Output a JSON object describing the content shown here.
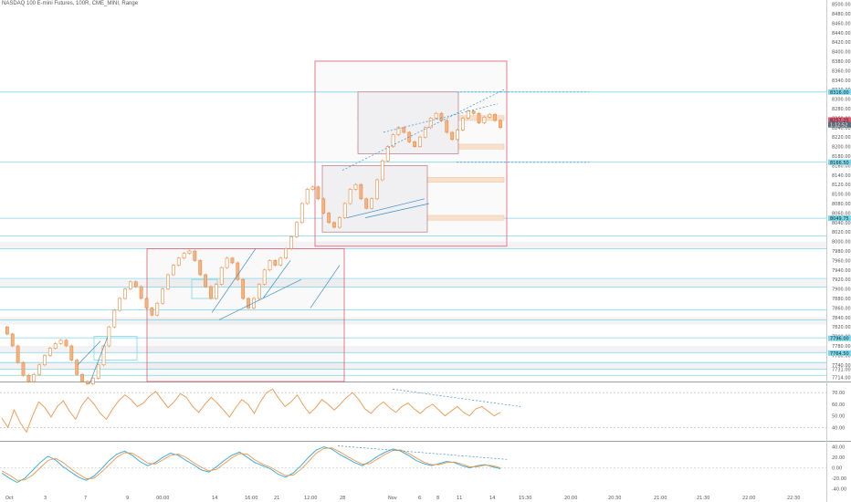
{
  "header": {
    "title": "NASDAQ 100 E-mini Futures, 100R, CME_MINI, Range"
  },
  "chart_data": {
    "type": "candlestick",
    "title": "NASDAQ 100 E-mini Futures, 100R, CME_MINI, Range",
    "price_axis": {
      "ticks": [
        "8500.00",
        "8480.00",
        "8460.00",
        "8440.00",
        "8420.00",
        "8400.00",
        "8380.00",
        "8360.00",
        "8340.00",
        "8320.00",
        "8300.00",
        "8280.00",
        "8260.00",
        "8240.00",
        "8220.00",
        "8200.00",
        "8180.00",
        "8160.00",
        "8140.00",
        "8120.00",
        "8100.00",
        "8080.00",
        "8060.00",
        "8040.00",
        "8020.00",
        "8000.00",
        "7980.00",
        "7960.00",
        "7940.00",
        "7920.00",
        "7900.00",
        "7880.00",
        "7860.00",
        "7840.00",
        "7820.00",
        "7800.00",
        "7780.00",
        "7760.00",
        "7740.00",
        "7731.00",
        "7714.00"
      ],
      "range": [
        7705,
        8505
      ],
      "highlighted_labels": [
        {
          "value": 8315,
          "text": "8316.00"
        },
        {
          "value": 8256,
          "text": "8257.25"
        },
        {
          "value": 8246,
          "text": "1:12:52"
        },
        {
          "value": 8167,
          "text": "8166.50"
        },
        {
          "value": 8049,
          "text": "8049.75"
        },
        {
          "value": 7796,
          "text": "7796.00"
        },
        {
          "value": 7765,
          "text": "7764.50"
        }
      ]
    },
    "rsi_axis": {
      "ticks": [
        "70.00",
        "60.00",
        "50.00",
        "40.00"
      ],
      "range": [
        30,
        78
      ]
    },
    "stoch_axis": {
      "ticks": [
        "40.00",
        "20.00",
        "0.00",
        "-20.00",
        "-40.00"
      ],
      "range": [
        -48,
        48
      ]
    },
    "time_axis": [
      "Oct",
      "3",
      "7",
      "9",
      "00:00",
      "14",
      "16:00",
      "21",
      "12:00",
      "28",
      "Nov",
      "6",
      "8",
      "11",
      "14",
      "15:30",
      "20:00",
      "20:30",
      "21:00",
      "21:30",
      "22:00",
      "22:30"
    ],
    "series": [
      {
        "values": [
          7820,
          7805,
          7780,
          7745,
          7718,
          7705,
          7720,
          7740,
          7760,
          7775,
          7785,
          7792,
          7780,
          7750,
          7720,
          7705,
          7700,
          7712,
          7740,
          7780,
          7820,
          7855,
          7880,
          7900,
          7915,
          7905,
          7880,
          7860,
          7845,
          7870,
          7900,
          7930,
          7950,
          7965,
          7975,
          7980,
          7960,
          7930,
          7905,
          7880,
          7910,
          7945,
          7965,
          7955,
          7920,
          7880,
          7860,
          7880,
          7910,
          7940,
          7960,
          7950,
          7965,
          7985,
          8010,
          8040,
          8080,
          8110,
          8115,
          8090,
          8060,
          8040,
          8030,
          8050,
          8080,
          8110,
          8120,
          8090,
          8070,
          8090,
          8130,
          8170,
          8200,
          8225,
          8240,
          8230,
          8210,
          8200,
          8220,
          8240,
          8260,
          8270,
          8255,
          8230,
          8215,
          8235,
          8260,
          8275,
          8270,
          8250,
          8262,
          8268,
          8255,
          8240
        ]
      }
    ],
    "rsi_values": [
      48,
      40,
      55,
      44,
      36,
      50,
      62,
      57,
      49,
      58,
      63,
      54,
      47,
      59,
      66,
      60,
      52,
      47,
      56,
      63,
      68,
      64,
      58,
      61,
      67,
      71,
      64,
      57,
      62,
      69,
      66,
      58,
      53,
      60,
      66,
      61,
      55,
      49,
      57,
      64,
      60,
      52,
      62,
      70,
      73,
      65,
      58,
      62,
      68,
      59,
      52,
      57,
      64,
      60,
      55,
      60,
      66,
      70,
      64,
      56,
      52,
      58,
      62,
      57,
      53,
      58,
      61,
      56,
      52,
      57,
      60,
      55,
      50,
      54,
      58,
      53,
      50,
      56,
      58,
      54,
      50,
      53
    ],
    "stoch_k": [
      -10,
      -20,
      -28,
      -20,
      -5,
      10,
      22,
      15,
      2,
      -8,
      -18,
      -24,
      -16,
      -2,
      14,
      26,
      32,
      24,
      12,
      4,
      10,
      20,
      28,
      24,
      14,
      6,
      -4,
      -8,
      2,
      14,
      24,
      30,
      20,
      10,
      4,
      -2,
      -12,
      -18,
      -10,
      4,
      20,
      34,
      40,
      36,
      26,
      18,
      10,
      4,
      12,
      22,
      30,
      36,
      32,
      24,
      14,
      8,
      4,
      8,
      12,
      10,
      4,
      0,
      4,
      6,
      2,
      -2
    ],
    "stoch_d": [
      -6,
      -14,
      -24,
      -23,
      -14,
      0,
      14,
      18,
      10,
      -2,
      -12,
      -21,
      -20,
      -8,
      6,
      20,
      29,
      28,
      19,
      9,
      7,
      15,
      24,
      26,
      20,
      10,
      1,
      -6,
      -3,
      8,
      19,
      27,
      26,
      15,
      7,
      1,
      -7,
      -15,
      -14,
      -3,
      12,
      28,
      37,
      38,
      31,
      22,
      14,
      7,
      8,
      17,
      26,
      33,
      34,
      28,
      19,
      11,
      6,
      6,
      10,
      11,
      7,
      2,
      2,
      5,
      4,
      0
    ]
  }
}
